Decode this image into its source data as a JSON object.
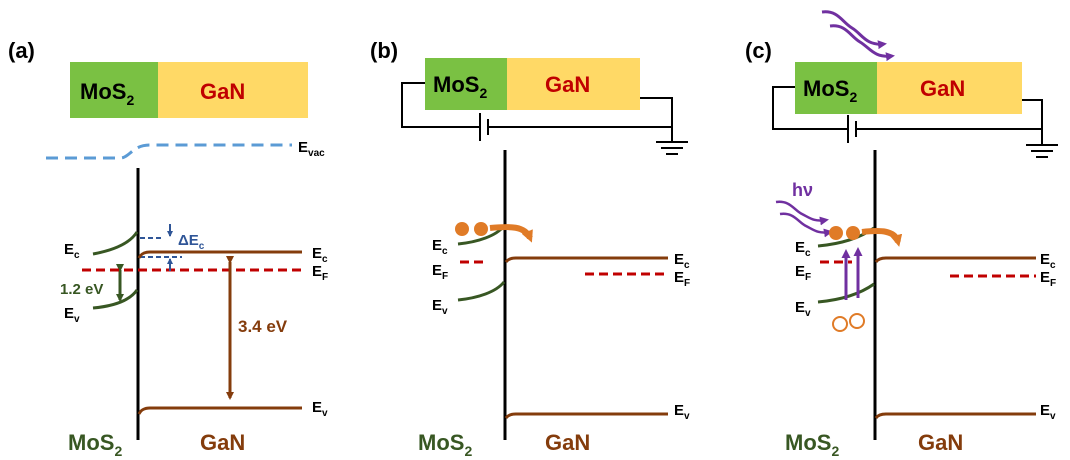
{
  "colors": {
    "mos2_fill": "#7ac143",
    "gan_fill": "#ffd966",
    "gan_text": "#c00000",
    "mos2_band": "#385723",
    "gan_band": "#843c0c",
    "fermi": "#c00000",
    "vacuum": "#5b9bd5",
    "delta": "#2f5597",
    "photon": "#7030a0",
    "carrier": "#e07b27",
    "wire": "#000000"
  },
  "panels": [
    {
      "label": "(a)",
      "box_left": "MoS",
      "box_left_sub": "2",
      "box_right": "GaN",
      "vacuum_label": "E",
      "vacuum_label_sub": "vac",
      "mos2_ec": "E",
      "mos2_ec_sub": "c",
      "mos2_ev": "E",
      "mos2_ev_sub": "v",
      "gap_mos2": "1.2 eV",
      "gap_gan": "3.4 eV",
      "delta_ec": "ΔE",
      "delta_ec_sub": "c",
      "gan_ec": "E",
      "gan_ec_sub": "c",
      "gan_ef": "E",
      "gan_ef_sub": "F",
      "gan_ev": "E",
      "gan_ev_sub": "v",
      "bottom_left": "MoS",
      "bottom_left_sub": "2",
      "bottom_right": "GaN"
    },
    {
      "label": "(b)",
      "box_left": "MoS",
      "box_left_sub": "2",
      "box_right": "GaN",
      "mos2_ec": "E",
      "mos2_ec_sub": "c",
      "mos2_ef": "E",
      "mos2_ef_sub": "F",
      "mos2_ev": "E",
      "mos2_ev_sub": "v",
      "gan_ec": "E",
      "gan_ec_sub": "c",
      "gan_ef": "E",
      "gan_ef_sub": "F",
      "gan_ev": "E",
      "gan_ev_sub": "v",
      "bottom_left": "MoS",
      "bottom_left_sub": "2",
      "bottom_right": "GaN"
    },
    {
      "label": "(c)",
      "box_left": "MoS",
      "box_left_sub": "2",
      "box_right": "GaN",
      "photon": "hν",
      "mos2_ec": "E",
      "mos2_ec_sub": "c",
      "mos2_ef": "E",
      "mos2_ef_sub": "F",
      "mos2_ev": "E",
      "mos2_ev_sub": "v",
      "gan_ec": "E",
      "gan_ec_sub": "c",
      "gan_ef": "E",
      "gan_ef_sub": "F",
      "gan_ev": "E",
      "gan_ev_sub": "v",
      "bottom_left": "MoS",
      "bottom_left_sub": "2",
      "bottom_right": "GaN"
    }
  ]
}
